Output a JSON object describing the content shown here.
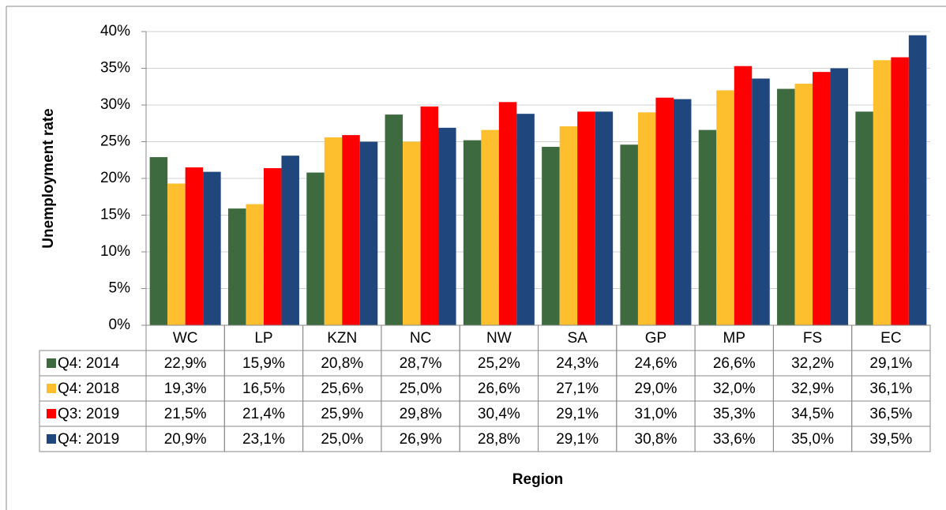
{
  "chart_data": {
    "type": "bar",
    "x_label": "Region",
    "y_label": "Unemployment rate",
    "categories": [
      "WC",
      "LP",
      "KZN",
      "NC",
      "NW",
      "SA",
      "GP",
      "MP",
      "FS",
      "EC"
    ],
    "series": [
      {
        "name": "Q4: 2014",
        "color": "#3d6b3f",
        "values": [
          22.9,
          15.9,
          20.8,
          28.7,
          25.2,
          24.3,
          24.6,
          26.6,
          32.2,
          29.1
        ],
        "value_labels": [
          "22,9%",
          "15,9%",
          "20,8%",
          "28,7%",
          "25,2%",
          "24,3%",
          "24,6%",
          "26,6%",
          "32,2%",
          "29,1%"
        ]
      },
      {
        "name": "Q4: 2018",
        "color": "#fdbf2d",
        "values": [
          19.3,
          16.5,
          25.6,
          25.0,
          26.6,
          27.1,
          29.0,
          32.0,
          32.9,
          36.1
        ],
        "value_labels": [
          "19,3%",
          "16,5%",
          "25,6%",
          "25,0%",
          "26,6%",
          "27,1%",
          "29,0%",
          "32,0%",
          "32,9%",
          "36,1%"
        ]
      },
      {
        "name": "Q3: 2019",
        "color": "#fe0000",
        "values": [
          21.5,
          21.4,
          25.9,
          29.8,
          30.4,
          29.1,
          31.0,
          35.3,
          34.5,
          36.5
        ],
        "value_labels": [
          "21,5%",
          "21,4%",
          "25,9%",
          "29,8%",
          "30,4%",
          "29,1%",
          "31,0%",
          "35,3%",
          "34,5%",
          "36,5%"
        ]
      },
      {
        "name": "Q4: 2019",
        "color": "#1f477d",
        "values": [
          20.9,
          23.1,
          25.0,
          26.9,
          28.8,
          29.1,
          30.8,
          33.6,
          35.0,
          39.5
        ],
        "value_labels": [
          "20,9%",
          "23,1%",
          "25,0%",
          "26,9%",
          "28,8%",
          "29,1%",
          "30,8%",
          "33,6%",
          "35,0%",
          "39,5%"
        ]
      }
    ],
    "ylim": [
      0,
      40
    ],
    "yticks": [
      {
        "value": 0,
        "label": "0%"
      },
      {
        "value": 5,
        "label": "5%"
      },
      {
        "value": 10,
        "label": "10%"
      },
      {
        "value": 15,
        "label": "15%"
      },
      {
        "value": 20,
        "label": "20%"
      },
      {
        "value": 25,
        "label": "25%"
      },
      {
        "value": 30,
        "label": "30%"
      },
      {
        "value": 35,
        "label": "35%"
      },
      {
        "value": 40,
        "label": "40%"
      }
    ],
    "grid": true
  }
}
